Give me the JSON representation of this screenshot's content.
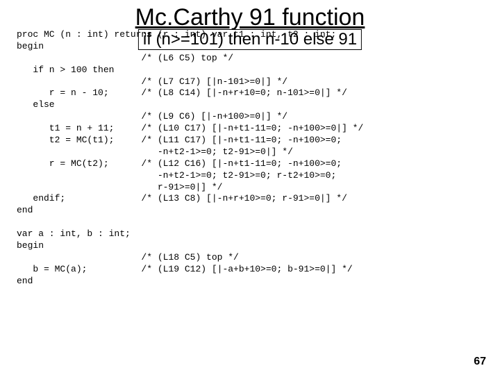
{
  "title": "Mc.Carthy 91 function",
  "subtitle": "if (n>=101) then n-10 else 91",
  "code": "proc MC (n : int) returns (r : int) var t1 : int, t2 : int;\nbegin\n                       /* (L6 C5) top */\n   if n > 100 then\n                       /* (L7 C17) [|n-101>=0|] */\n      r = n - 10;      /* (L8 C14) [|-n+r+10=0; n-101>=0|] */\n   else\n                       /* (L9 C6) [|-n+100>=0|] */\n      t1 = n + 11;     /* (L10 C17) [|-n+t1-11=0; -n+100>=0|] */\n      t2 = MC(t1);     /* (L11 C17) [|-n+t1-11=0; -n+100>=0;\n                          -n+t2-1>=0; t2-91>=0|] */\n      r = MC(t2);      /* (L12 C16) [|-n+t1-11=0; -n+100>=0;\n                          -n+t2-1>=0; t2-91>=0; r-t2+10>=0;\n                          r-91>=0|] */\n   endif;              /* (L13 C8) [|-n+r+10>=0; r-91>=0|] */\nend\n\nvar a : int, b : int;\nbegin\n                       /* (L18 C5) top */\n   b = MC(a);          /* (L19 C12) [|-a+b+10>=0; b-91>=0|] */\nend",
  "page_number": "67",
  "colors": {
    "background": "#ffffff",
    "text": "#000000",
    "border": "#000000"
  },
  "fonts": {
    "title_size": 34,
    "subtitle_size": 24,
    "code_size": 13,
    "title_family": "Arial",
    "code_family": "Courier New"
  }
}
